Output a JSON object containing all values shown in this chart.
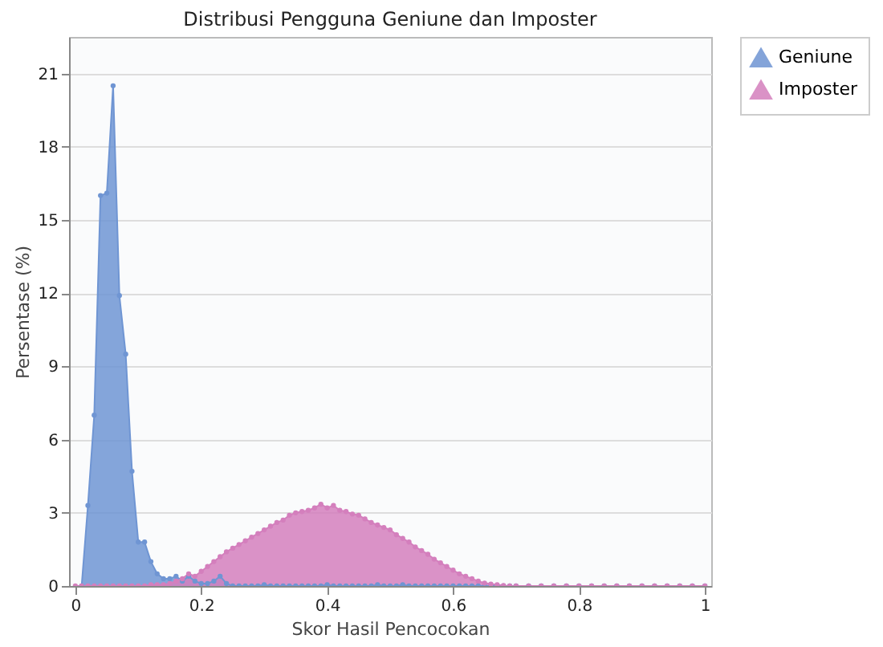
{
  "chart_data": {
    "type": "area",
    "title": "Distribusi Pengguna Geniune dan Imposter",
    "xlabel": "Skor Hasil Pencocokan",
    "ylabel": "Persentase (%)",
    "x": [
      0,
      0.01,
      0.02,
      0.03,
      0.04,
      0.05,
      0.06,
      0.07,
      0.08,
      0.09,
      0.1,
      0.11,
      0.12,
      0.13,
      0.14,
      0.15,
      0.16,
      0.17,
      0.18,
      0.19,
      0.2,
      0.21,
      0.22,
      0.23,
      0.24,
      0.25,
      0.26,
      0.27,
      0.28,
      0.29,
      0.3,
      0.31,
      0.32,
      0.33,
      0.34,
      0.35,
      0.36,
      0.37,
      0.38,
      0.39,
      0.4,
      0.41,
      0.42,
      0.43,
      0.44,
      0.45,
      0.46,
      0.47,
      0.48,
      0.49,
      0.5,
      0.51,
      0.52,
      0.53,
      0.54,
      0.55,
      0.56,
      0.57,
      0.58,
      0.59,
      0.6,
      0.61,
      0.62,
      0.63,
      0.64,
      0.65,
      0.66,
      0.67,
      0.68,
      0.69,
      0.7,
      0.72,
      0.74,
      0.76,
      0.78,
      0.8,
      0.82,
      0.84,
      0.86,
      0.88,
      0.9,
      0.92,
      0.94,
      0.96,
      0.98,
      1
    ],
    "series": [
      {
        "name": "Geniune",
        "color": "#6f95d3",
        "values": [
          null,
          0,
          3.3,
          7,
          16,
          16.1,
          20.5,
          11.9,
          9.5,
          4.7,
          1.8,
          1.8,
          1,
          0.5,
          0.3,
          0.3,
          0.4,
          0.2,
          0.4,
          0.2,
          0.1,
          0.1,
          0.2,
          0.4,
          0.1,
          0,
          0,
          0,
          0,
          0,
          0.05,
          0,
          0,
          0,
          0,
          0,
          0,
          0,
          0,
          0,
          0.05,
          0,
          0,
          0,
          0,
          0,
          0,
          0,
          0.05,
          0,
          0,
          0,
          0.05,
          0,
          0,
          0,
          0,
          0,
          0,
          0,
          0,
          0,
          0,
          0,
          0,
          0,
          0,
          0,
          0,
          0,
          0,
          0,
          0,
          0,
          0,
          0,
          0,
          0,
          0,
          0,
          0,
          0,
          0,
          0,
          0,
          0
        ]
      },
      {
        "name": "Imposter",
        "color": "#d47fbd",
        "values": [
          0,
          0,
          0,
          0,
          0,
          0,
          0,
          0,
          0,
          0,
          0,
          0,
          0.05,
          0.05,
          0.05,
          0.1,
          0.2,
          0.3,
          0.5,
          0.4,
          0.6,
          0.8,
          1,
          1.2,
          1.4,
          1.55,
          1.7,
          1.85,
          2,
          2.15,
          2.3,
          2.45,
          2.6,
          2.7,
          2.9,
          3,
          3.05,
          3.1,
          3.2,
          3.35,
          3.2,
          3.3,
          3.1,
          3.05,
          2.95,
          2.9,
          2.75,
          2.6,
          2.5,
          2.4,
          2.3,
          2.1,
          1.95,
          1.8,
          1.6,
          1.45,
          1.3,
          1.1,
          0.95,
          0.8,
          0.65,
          0.5,
          0.4,
          0.3,
          0.2,
          0.12,
          0.08,
          0.05,
          0.02,
          0,
          0,
          0,
          0,
          0,
          0,
          0,
          0,
          0,
          0,
          0,
          0,
          0,
          0,
          0,
          0,
          0
        ]
      }
    ],
    "xlim": [
      -0.01,
      1.01
    ],
    "xticks": [
      0,
      0.2,
      0.4,
      0.6,
      0.8,
      1
    ],
    "ylim": [
      0,
      22.5
    ],
    "yticks": [
      0,
      3,
      6,
      9,
      12,
      15,
      18,
      21
    ],
    "grid": "y",
    "legend": "top right",
    "marker": "circle"
  }
}
